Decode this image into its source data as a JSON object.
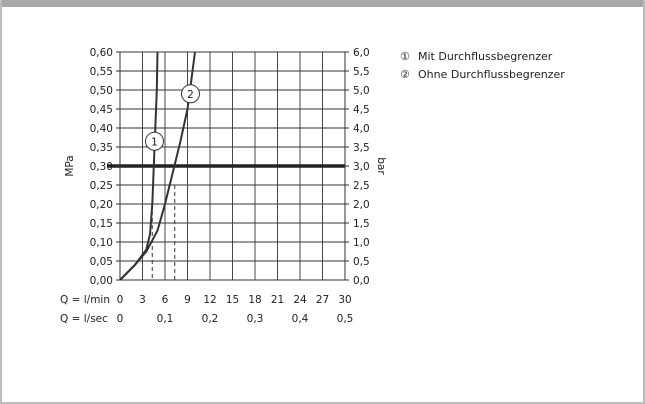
{
  "chart_data": {
    "type": "line",
    "title": "",
    "left_axis": {
      "label": "MPa",
      "ylim": [
        0,
        0.6
      ],
      "ticks": [
        "0,00",
        "0,05",
        "0,10",
        "0,15",
        "0,20",
        "0,25",
        "0,30",
        "0,35",
        "0,40",
        "0,45",
        "0,50",
        "0,55",
        "0,60"
      ]
    },
    "right_axis": {
      "label": "bar",
      "ylim": [
        0,
        6
      ],
      "ticks": [
        "0,0",
        "0,5",
        "1,0",
        "1,5",
        "2,0",
        "2,5",
        "3,0",
        "3,5",
        "4,0",
        "4,5",
        "5,0",
        "5,5",
        "6,0"
      ]
    },
    "x_axis_primary": {
      "label": "Q = l/min",
      "xlim": [
        0,
        30
      ],
      "ticks": [
        "0",
        "3",
        "6",
        "9",
        "12",
        "15",
        "18",
        "21",
        "24",
        "27",
        "30"
      ]
    },
    "x_axis_secondary": {
      "label": "Q = l/sec",
      "ticks": [
        "0",
        "0,1",
        "0,2",
        "0,3",
        "0,4",
        "0,5"
      ]
    },
    "grid": true,
    "reference_line": {
      "y_mpa": 0.3
    },
    "series": [
      {
        "marker": "1",
        "points": [
          [
            0,
            0
          ],
          [
            2,
            0.04
          ],
          [
            3.5,
            0.08
          ],
          [
            4,
            0.12
          ],
          [
            4.3,
            0.2
          ],
          [
            4.5,
            0.3
          ],
          [
            4.7,
            0.4
          ],
          [
            4.9,
            0.5
          ],
          [
            5,
            0.6
          ]
        ],
        "marker_at": [
          4.6,
          0.365
        ]
      },
      {
        "marker": "2",
        "points": [
          [
            0,
            0
          ],
          [
            2,
            0.04
          ],
          [
            3.5,
            0.075
          ],
          [
            5,
            0.13
          ],
          [
            6,
            0.2
          ],
          [
            7,
            0.28
          ],
          [
            8,
            0.36
          ],
          [
            9,
            0.45
          ],
          [
            10,
            0.6
          ]
        ],
        "marker_at": [
          9.4,
          0.49
        ]
      }
    ],
    "dashed_markers": [
      {
        "x": 4.3,
        "y_mpa": 0.2
      },
      {
        "x": 7.3,
        "y_mpa": 0.25
      }
    ],
    "legend": [
      {
        "symbol": "①",
        "label": "Mit Durchflussbegrenzer"
      },
      {
        "symbol": "②",
        "label": "Ohne Durchflussbegrenzer"
      }
    ],
    "legend_position": "top-right"
  }
}
